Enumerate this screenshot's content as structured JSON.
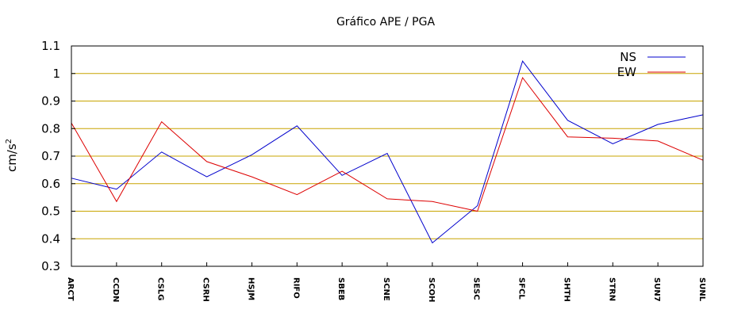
{
  "chart_data": {
    "type": "line",
    "title": "Gráfico  APE / PGA",
    "xlabel": "",
    "ylabel_base": "cm/s",
    "ylabel_exp": "2",
    "ylim": [
      0.3,
      1.1
    ],
    "yticks": [
      "0.3",
      "0.4",
      "0.5",
      "0.6",
      "0.7",
      "0.8",
      "0.9",
      "1",
      "1.1"
    ],
    "grid": "horizontal",
    "grid_color": "#c8a400",
    "legend_position": "top-right",
    "categories": [
      "ARCT",
      "CCDN",
      "CSLG",
      "CSRH",
      "HSJM",
      "RIFO",
      "SBEB",
      "SCNE",
      "SCOH",
      "SESC",
      "SFCL",
      "SHTH",
      "STRN",
      "SUN7",
      "SUNL"
    ],
    "series": [
      {
        "name": "NS",
        "color": "#0000cc",
        "values": [
          0.62,
          0.58,
          0.715,
          0.625,
          0.705,
          0.81,
          0.63,
          0.71,
          0.385,
          0.52,
          1.045,
          0.83,
          0.745,
          0.815,
          0.85
        ]
      },
      {
        "name": "EW",
        "color": "#dd0000",
        "values": [
          0.82,
          0.535,
          0.825,
          0.68,
          0.625,
          0.56,
          0.645,
          0.545,
          0.535,
          0.5,
          0.985,
          0.77,
          0.765,
          0.755,
          0.685
        ]
      }
    ]
  }
}
